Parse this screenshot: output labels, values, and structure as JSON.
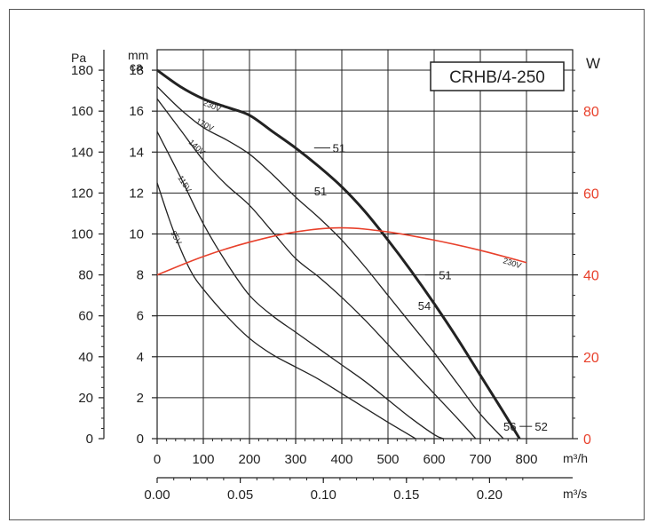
{
  "chart_data": {
    "type": "line",
    "title": "CRHB/4-250",
    "axes": {
      "left_pa": {
        "label": "Pa",
        "ticks": [
          "0",
          "20",
          "40",
          "60",
          "80",
          "100",
          "120",
          "140",
          "160",
          "180"
        ]
      },
      "left_mmca": {
        "label_line1": "mm",
        "label_line2": "ca",
        "ticks": [
          "0",
          "2",
          "4",
          "6",
          "8",
          "10",
          "12",
          "14",
          "16",
          "18"
        ]
      },
      "right_w": {
        "label": "W",
        "ticks": [
          "0",
          "20",
          "40",
          "60",
          "80"
        ],
        "color": "#e8412c"
      },
      "x_m3h": {
        "label": "m³/h",
        "ticks": [
          "0",
          "100",
          "200",
          "300",
          "400",
          "500",
          "600",
          "700",
          "800"
        ]
      },
      "x_m3s": {
        "label": "m³/s",
        "ticks": [
          "0.00",
          "0.05",
          "0.10",
          "0.15",
          "0.20"
        ]
      }
    },
    "ranges": {
      "x_m3h": [
        0,
        900
      ],
      "y_mmca": [
        0,
        19
      ],
      "y_w": [
        0,
        95
      ]
    },
    "grid": true,
    "series": [
      {
        "name": "230V",
        "unit": "mmca",
        "emphasis": true,
        "points": [
          [
            0,
            18
          ],
          [
            50,
            17.2
          ],
          [
            100,
            16.6
          ],
          [
            150,
            16.2
          ],
          [
            200,
            15.8
          ],
          [
            250,
            15
          ],
          [
            300,
            14.2
          ],
          [
            350,
            13.3
          ],
          [
            400,
            12.3
          ],
          [
            450,
            11.1
          ],
          [
            500,
            9.7
          ],
          [
            550,
            8.2
          ],
          [
            600,
            6.6
          ],
          [
            650,
            4.9
          ],
          [
            700,
            3.1
          ],
          [
            750,
            1.3
          ],
          [
            785,
            0
          ]
        ]
      },
      {
        "name": "170V",
        "unit": "mmca",
        "points": [
          [
            0,
            17.2
          ],
          [
            50,
            16.1
          ],
          [
            100,
            15.2
          ],
          [
            150,
            14.6
          ],
          [
            200,
            13.9
          ],
          [
            250,
            12.9
          ],
          [
            300,
            11.8
          ],
          [
            350,
            10.8
          ],
          [
            400,
            9.7
          ],
          [
            450,
            8.4
          ],
          [
            500,
            7
          ],
          [
            550,
            5.6
          ],
          [
            600,
            4.2
          ],
          [
            650,
            2.7
          ],
          [
            700,
            1.2
          ],
          [
            750,
            0
          ]
        ]
      },
      {
        "name": "140V",
        "unit": "mmca",
        "points": [
          [
            0,
            16.6
          ],
          [
            50,
            15.1
          ],
          [
            100,
            13.6
          ],
          [
            150,
            12.4
          ],
          [
            200,
            11.4
          ],
          [
            250,
            10.1
          ],
          [
            300,
            8.8
          ],
          [
            350,
            7.9
          ],
          [
            400,
            6.9
          ],
          [
            450,
            5.8
          ],
          [
            500,
            4.6
          ],
          [
            550,
            3.4
          ],
          [
            600,
            2.2
          ],
          [
            650,
            1
          ],
          [
            690,
            0
          ]
        ]
      },
      {
        "name": "115V",
        "unit": "mmca",
        "points": [
          [
            0,
            15
          ],
          [
            50,
            12.8
          ],
          [
            100,
            10.5
          ],
          [
            150,
            8.6
          ],
          [
            200,
            7
          ],
          [
            250,
            6
          ],
          [
            300,
            5.2
          ],
          [
            350,
            4.4
          ],
          [
            400,
            3.6
          ],
          [
            450,
            2.8
          ],
          [
            500,
            1.9
          ],
          [
            550,
            1
          ],
          [
            600,
            0.2
          ],
          [
            620,
            0
          ]
        ]
      },
      {
        "name": "95V",
        "unit": "mmca",
        "points": [
          [
            0,
            12.5
          ],
          [
            25,
            10.8
          ],
          [
            50,
            9.3
          ],
          [
            75,
            8.1
          ],
          [
            100,
            7.3
          ],
          [
            150,
            6
          ],
          [
            200,
            4.9
          ],
          [
            250,
            4.1
          ],
          [
            300,
            3.5
          ],
          [
            350,
            2.9
          ],
          [
            400,
            2.2
          ],
          [
            450,
            1.5
          ],
          [
            500,
            0.8
          ],
          [
            560,
            0
          ]
        ]
      },
      {
        "name": "230V",
        "unit": "W",
        "color": "#e8412c",
        "points": [
          [
            0,
            40
          ],
          [
            100,
            44.5
          ],
          [
            200,
            48
          ],
          [
            300,
            50.5
          ],
          [
            400,
            51.5
          ],
          [
            500,
            50.5
          ],
          [
            600,
            48.5
          ],
          [
            700,
            46
          ],
          [
            800,
            43
          ]
        ]
      }
    ],
    "annotations": [
      {
        "text": "51",
        "x": 380,
        "y": 14.2,
        "color": "#222"
      },
      {
        "text": "51",
        "x": 340,
        "y": 12.1,
        "color": "#2b5cb0"
      },
      {
        "text": "51",
        "x": 610,
        "y": 8.0,
        "color": "#222"
      },
      {
        "text": "54",
        "x": 565,
        "y": 6.5,
        "color": "#2b5cb0"
      },
      {
        "text": "56",
        "x": 750,
        "y": 0.6,
        "color": "#2b5cb0"
      },
      {
        "text": "52",
        "x": 818,
        "y": 0.6,
        "color": "#222"
      }
    ]
  }
}
